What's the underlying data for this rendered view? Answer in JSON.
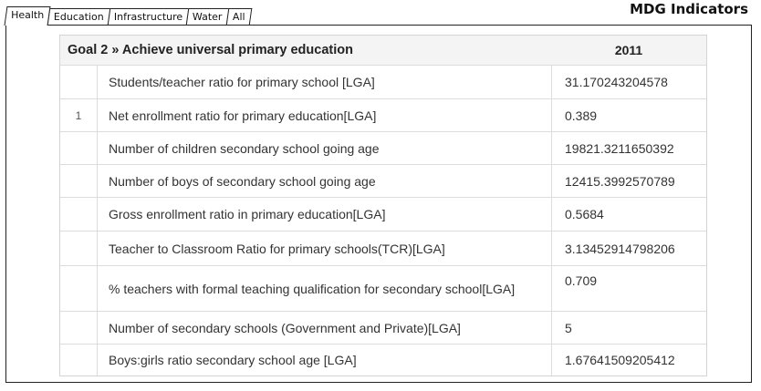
{
  "tabs": [
    {
      "label": "Health"
    },
    {
      "label": "Education"
    },
    {
      "label": "Infrastructure"
    },
    {
      "label": "Water"
    },
    {
      "label": "All"
    }
  ],
  "app_title": "MDG Indicators",
  "table": {
    "goal_prefix": "Goal 2 »",
    "goal_title": "Achieve universal primary education",
    "year": "2011",
    "rows": [
      {
        "index": "",
        "name": "Students/teacher ratio for primary school [LGA]",
        "value": "31.170243204578"
      },
      {
        "index": "1",
        "name": "Net enrollment ratio for primary education[LGA]",
        "value": "0.389"
      },
      {
        "index": "",
        "name": "Number of children secondary school going age",
        "value": "19821.3211650392"
      },
      {
        "index": "",
        "name": "Number of boys of secondary school going age",
        "value": "12415.3992570789"
      },
      {
        "index": "",
        "name": "Gross enrollment ratio in primary education[LGA]",
        "value": "0.5684"
      },
      {
        "index": "",
        "name": "Teacher to Classroom Ratio for primary schools(TCR)[LGA]",
        "value": "3.13452914798206"
      },
      {
        "index": "",
        "name": "% teachers with formal teaching qualification for secondary school[LGA]",
        "value": "0.709"
      },
      {
        "index": "",
        "name": "Number of secondary schools (Government and Private)[LGA]",
        "value": "5"
      },
      {
        "index": "",
        "name": "Boys:girls ratio secondary school age [LGA]",
        "value": "1.67641509205412"
      }
    ]
  }
}
